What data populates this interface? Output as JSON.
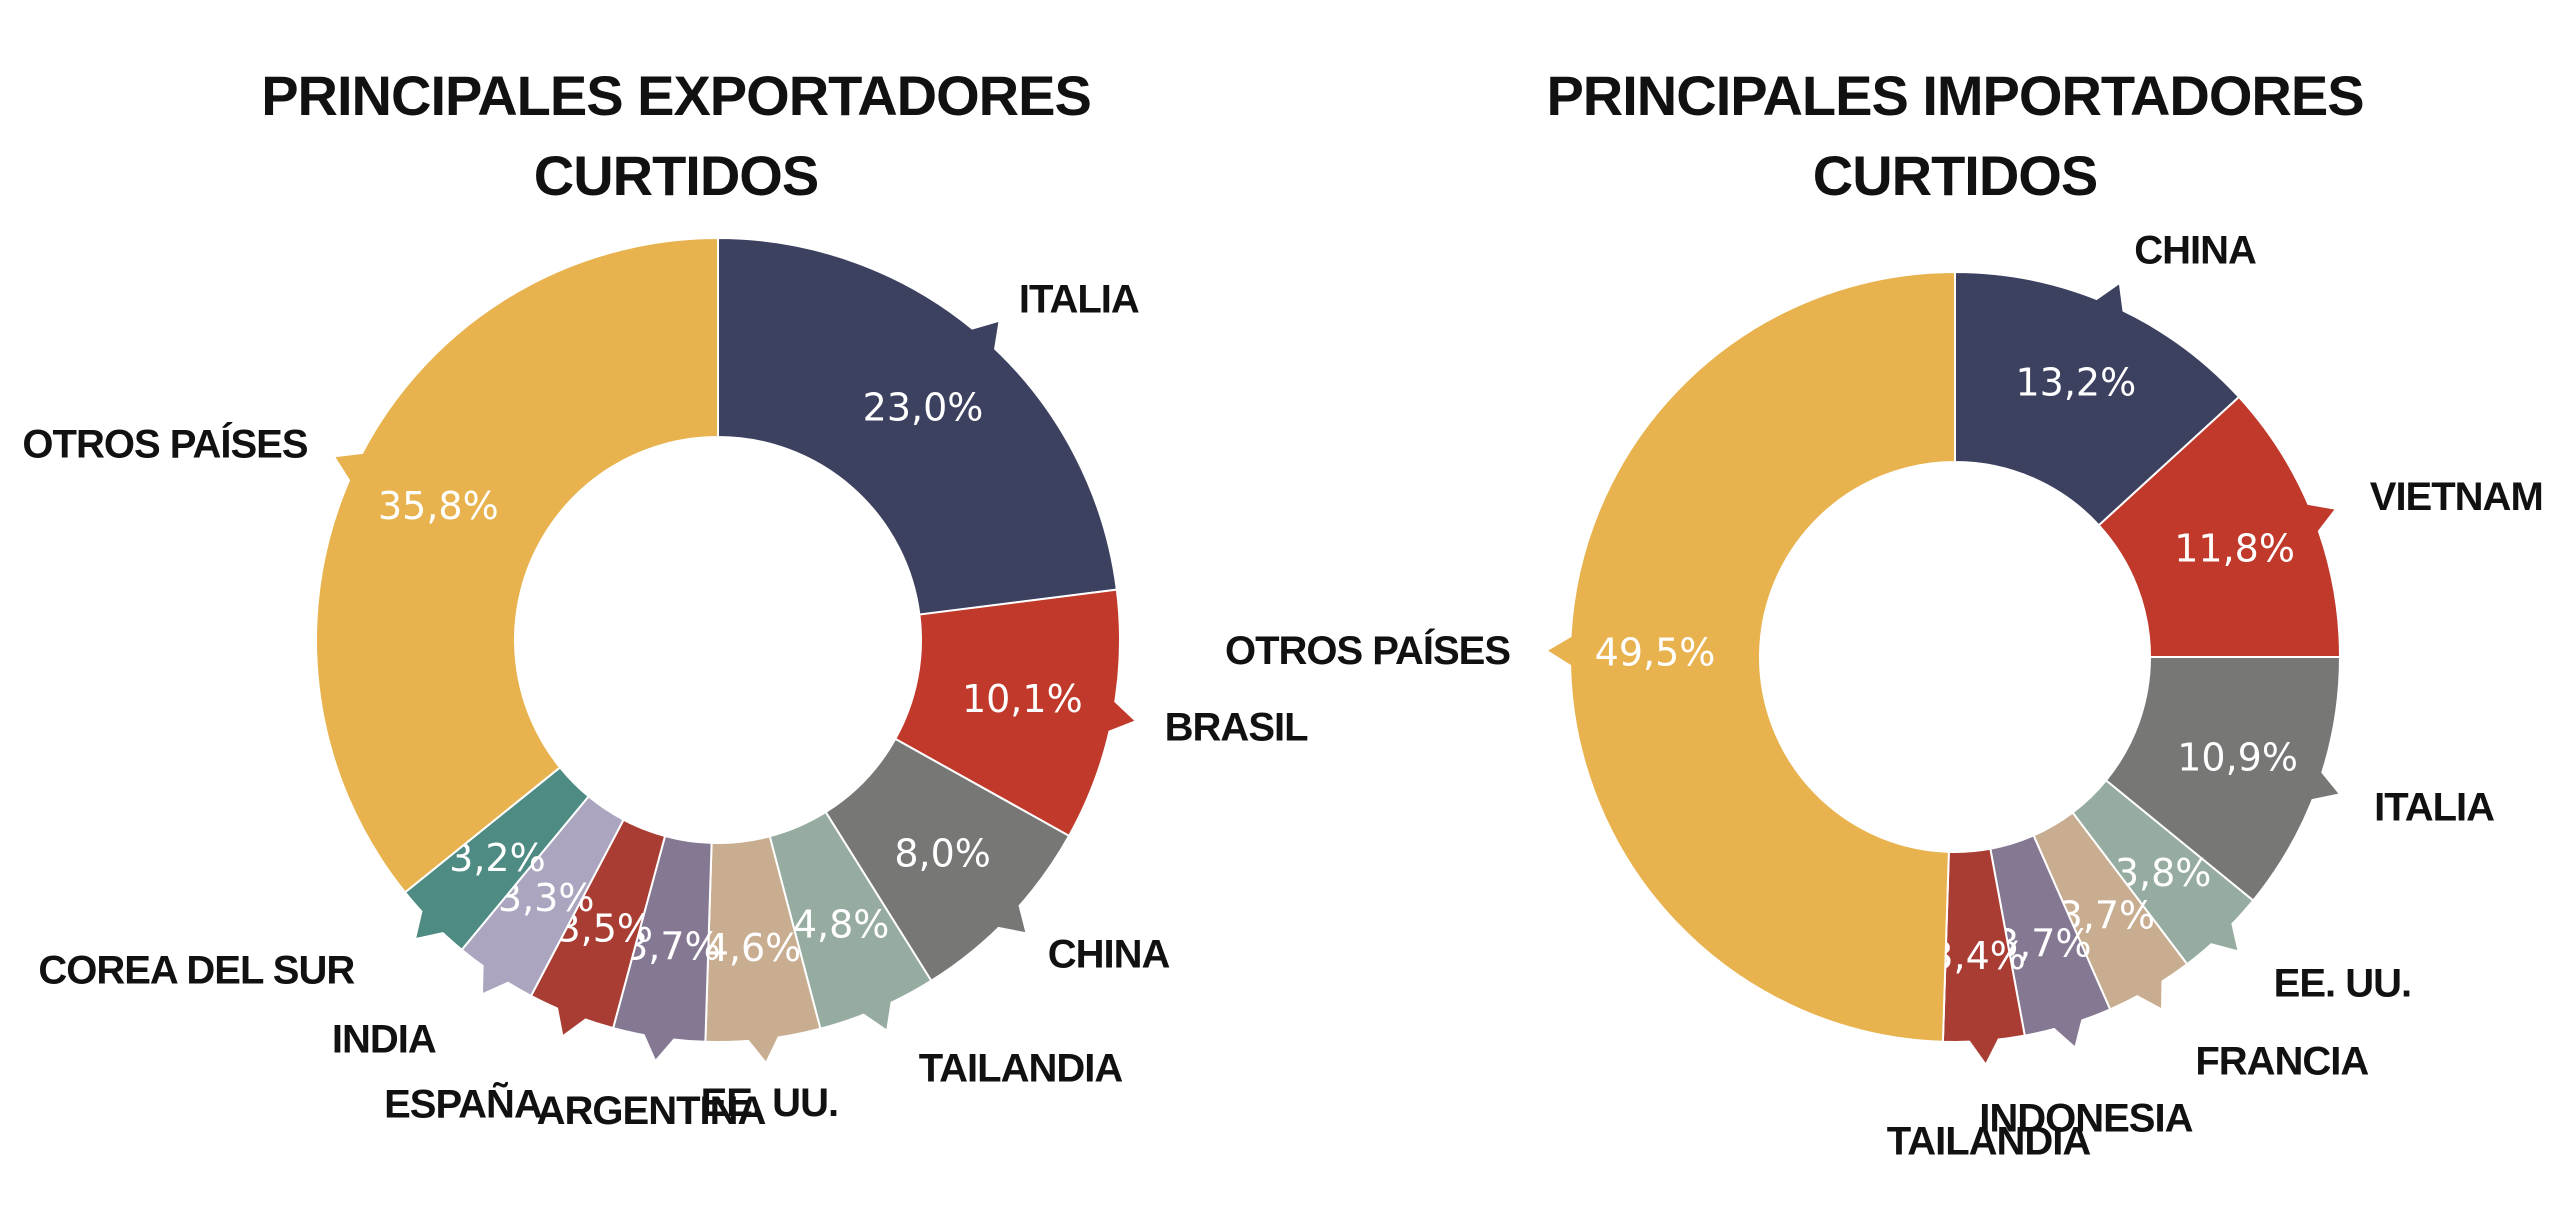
{
  "chart_data": [
    {
      "type": "pie",
      "title": "PRINCIPALES EXPORTADORES",
      "subtitle": "CURTIDOS",
      "slices": [
        {
          "label": "ITALIA",
          "value": 23.0,
          "value_label": "23,0%",
          "color": "#3d4160"
        },
        {
          "label": "BRASIL",
          "value": 10.1,
          "value_label": "10,1%",
          "color": "#c0392b"
        },
        {
          "label": "CHINA",
          "value": 8.0,
          "value_label": "8,0%",
          "color": "#777776"
        },
        {
          "label": "TAILANDIA",
          "value": 4.8,
          "value_label": "4,8%",
          "color": "#97aca0"
        },
        {
          "label": "EE. UU.",
          "value": 4.6,
          "value_label": "4,6%",
          "color": "#c8ad91"
        },
        {
          "label": "ARGENTINA",
          "value": 3.7,
          "value_label": "3,7%",
          "color": "#857893"
        },
        {
          "label": "ESPAÑA",
          "value": 3.5,
          "value_label": "3,5%",
          "color": "#a93d33"
        },
        {
          "label": "INDIA",
          "value": 3.3,
          "value_label": "3,3%",
          "color": "#aba5bf"
        },
        {
          "label": "COREA DEL SUR",
          "value": 3.2,
          "value_label": "3,2%",
          "color": "#4d8b83"
        },
        {
          "label": "OTROS PAÍSES",
          "value": 35.8,
          "value_label": "35,8%",
          "color": "#e8b34f"
        }
      ]
    },
    {
      "type": "pie",
      "title": "PRINCIPALES IMPORTADORES",
      "subtitle": "CURTIDOS",
      "slices": [
        {
          "label": "CHINA",
          "value": 13.2,
          "value_label": "13,2%",
          "color": "#3d4160"
        },
        {
          "label": "VIETNAM",
          "value": 11.8,
          "value_label": "11,8%",
          "color": "#c0392b"
        },
        {
          "label": "ITALIA",
          "value": 10.9,
          "value_label": "10,9%",
          "color": "#777776"
        },
        {
          "label": "EE. UU.",
          "value": 3.8,
          "value_label": "3,8%",
          "color": "#97aca0"
        },
        {
          "label": "FRANCIA",
          "value": 3.7,
          "value_label": "3,7%",
          "color": "#c8ad91"
        },
        {
          "label": "INDONESIA",
          "value": 3.7,
          "value_label": "3,7%",
          "color": "#857893"
        },
        {
          "label": "TAILANDIA",
          "value": 3.4,
          "value_label": "3,4%",
          "color": "#a93d33"
        },
        {
          "label": "OTROS PAÍSES",
          "value": 49.5,
          "value_label": "49,5%",
          "color": "#e8b34f"
        }
      ]
    }
  ]
}
